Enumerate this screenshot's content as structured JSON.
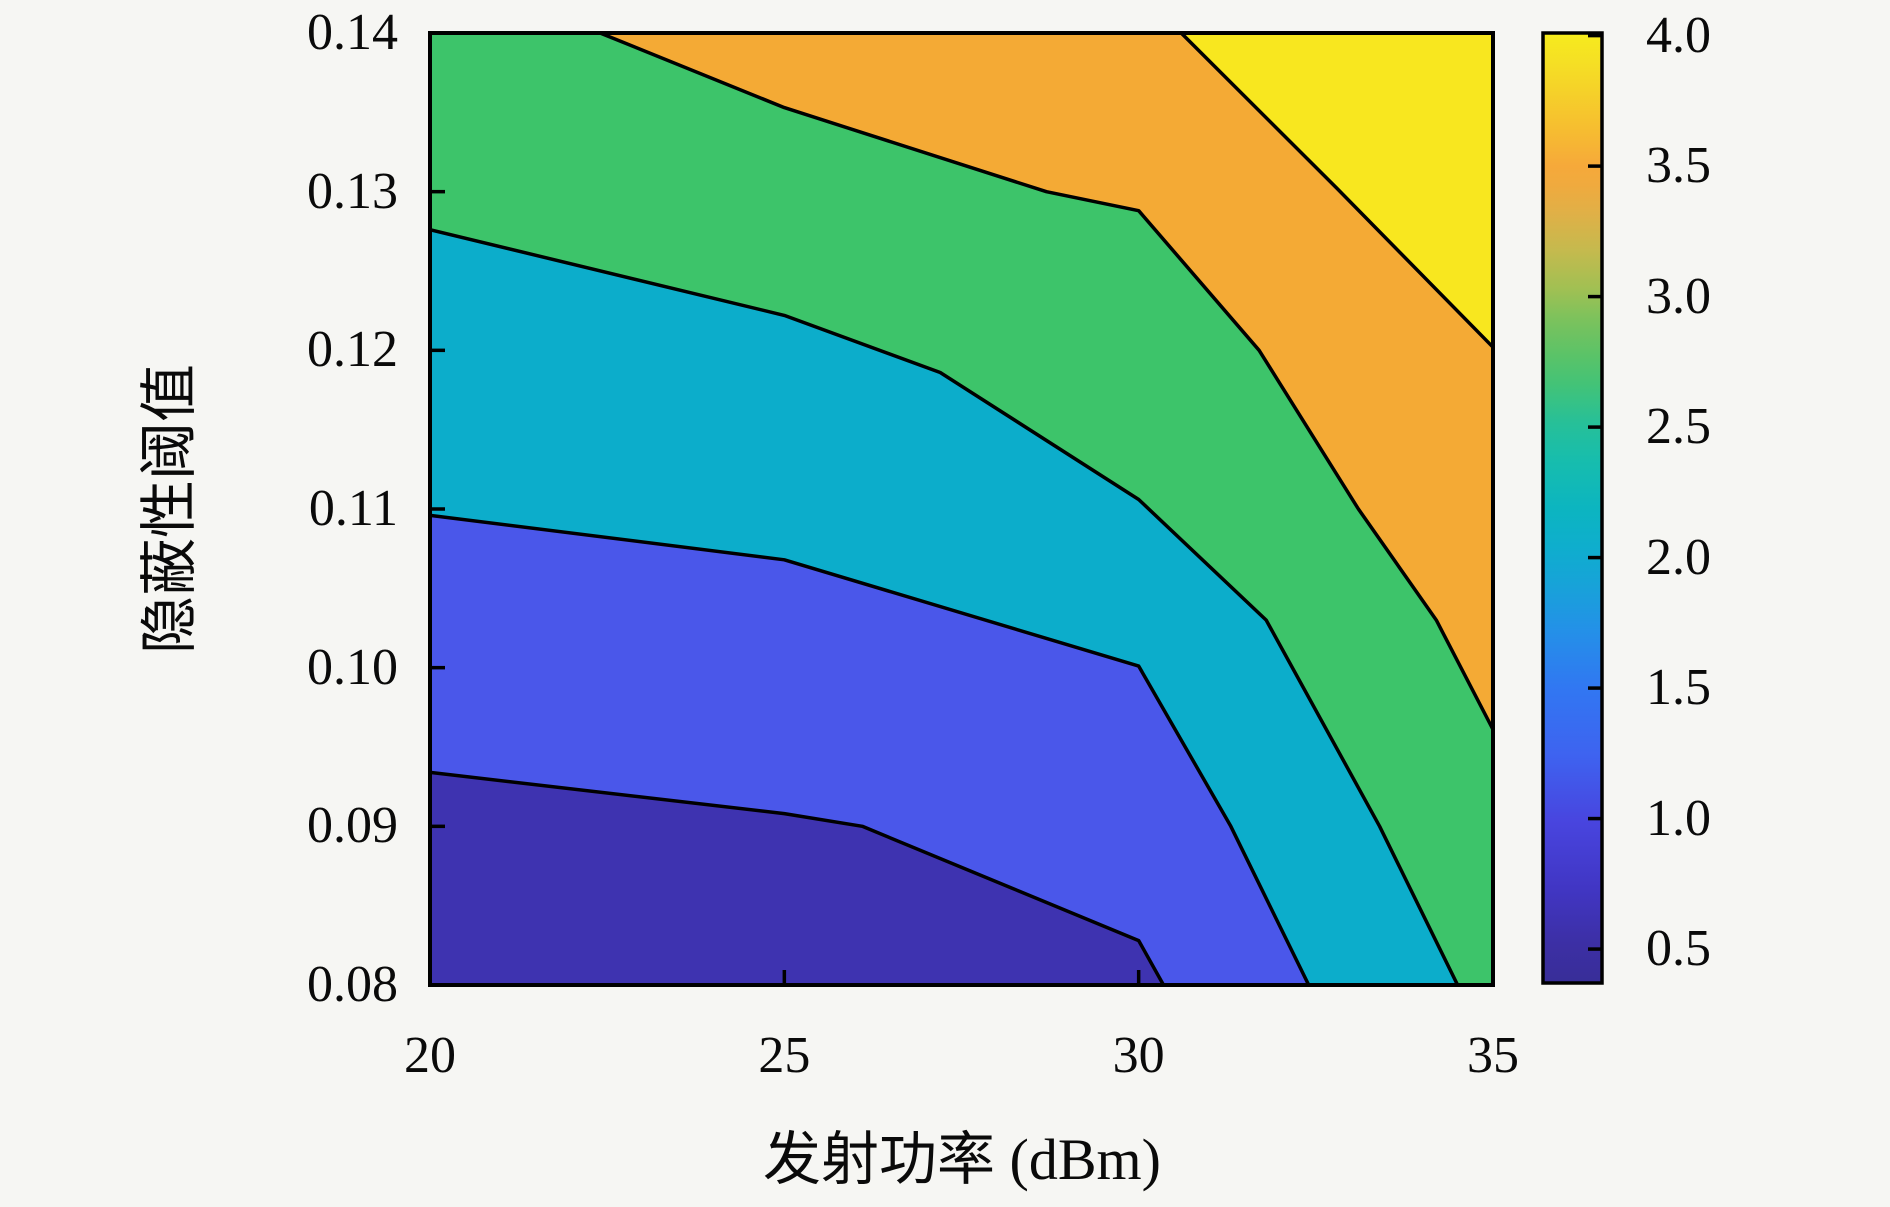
{
  "figure": {
    "background": "#f6f6f3",
    "kind": "MATLAB-style filled contour plot"
  },
  "axes": {
    "xlabel": "发射功率 (dBm)",
    "ylabel": "隐蔽性阈值",
    "x_range": [
      20,
      35
    ],
    "y_range": [
      0.08,
      0.14
    ],
    "border_color": "#000000",
    "x_ticks": [
      {
        "value": 20,
        "label": "20"
      },
      {
        "value": 25,
        "label": "25"
      },
      {
        "value": 30,
        "label": "30"
      },
      {
        "value": 35,
        "label": "35"
      }
    ],
    "y_ticks": [
      {
        "value": 0.14,
        "label": "0.14"
      },
      {
        "value": 0.13,
        "label": "0.13"
      },
      {
        "value": 0.12,
        "label": "0.12"
      },
      {
        "value": 0.11,
        "label": "0.11"
      },
      {
        "value": 0.1,
        "label": "0.10"
      },
      {
        "value": 0.09,
        "label": "0.09"
      },
      {
        "value": 0.08,
        "label": "0.08"
      }
    ]
  },
  "colorbar": {
    "value_range": [
      0.37,
      4.01
    ],
    "border_color": "#000000",
    "ticks": [
      {
        "value": 4.0,
        "label": "4.0"
      },
      {
        "value": 3.5,
        "label": "3.5"
      },
      {
        "value": 3.0,
        "label": "3.0"
      },
      {
        "value": 2.5,
        "label": "2.5"
      },
      {
        "value": 2.0,
        "label": "2.0"
      },
      {
        "value": 1.5,
        "label": "1.5"
      },
      {
        "value": 1.0,
        "label": "1.0"
      },
      {
        "value": 0.5,
        "label": "0.5"
      }
    ],
    "gradient_stops": [
      [
        0.0,
        "#382E98"
      ],
      [
        0.04,
        "#3C2FA4"
      ],
      [
        0.1,
        "#4136C4"
      ],
      [
        0.17,
        "#4845DF"
      ],
      [
        0.24,
        "#3E63F0"
      ],
      [
        0.31,
        "#3177F2"
      ],
      [
        0.37,
        "#2490E8"
      ],
      [
        0.42,
        "#17A3D8"
      ],
      [
        0.46,
        "#0EAECD"
      ],
      [
        0.5,
        "#0CB5C0"
      ],
      [
        0.55,
        "#17BDAD"
      ],
      [
        0.59,
        "#27C098"
      ],
      [
        0.63,
        "#43C377"
      ],
      [
        0.66,
        "#5AC368"
      ],
      [
        0.7,
        "#7DC25C"
      ],
      [
        0.73,
        "#A0C053"
      ],
      [
        0.77,
        "#C4BA4E"
      ],
      [
        0.81,
        "#E0B047"
      ],
      [
        0.84,
        "#F0AA3E"
      ],
      [
        0.86,
        "#F6A93A"
      ],
      [
        0.9,
        "#F6BE30"
      ],
      [
        0.94,
        "#F5D229"
      ],
      [
        0.97,
        "#F5E024"
      ],
      [
        0.995,
        "#F6E91E"
      ],
      [
        1.0,
        "#FAF215"
      ]
    ]
  },
  "chart_data": {
    "type": "filled_contour",
    "title": "",
    "xlabel": "发射功率 (dBm)",
    "ylabel": "隐蔽性阈值",
    "x_grid": [
      20,
      25,
      30,
      35
    ],
    "y_grid": [
      0.08,
      0.09,
      0.1,
      0.11,
      0.12,
      0.13,
      0.14
    ],
    "xlim": [
      20,
      35
    ],
    "ylim": [
      0.08,
      0.14
    ],
    "grid": false,
    "legend": "colorbar-right",
    "colorbar_tick_values": [
      0.5,
      1.0,
      1.5,
      2.0,
      2.5,
      3.0,
      3.5,
      4.0
    ],
    "contour_line_color": "#000000",
    "bands": [
      {
        "name": "lowest",
        "color": "#3E33B0",
        "region": "base",
        "value_range_estimated": [
          0.37,
          1.0
        ]
      },
      {
        "name": "low",
        "color": "#4A57EA",
        "above_line_index": 0,
        "value_range_estimated": [
          1.0,
          2.0
        ]
      },
      {
        "name": "mid-low",
        "color": "#0CADCB",
        "above_line_index": 1,
        "value_range_estimated": [
          2.0,
          2.5
        ]
      },
      {
        "name": "mid",
        "color": "#3DC46A",
        "above_line_index": 2,
        "value_range_estimated": [
          2.5,
          3.5
        ]
      },
      {
        "name": "high",
        "color": "#F4AA35",
        "above_line_index": 3,
        "value_range_estimated": [
          3.5,
          4.0
        ]
      },
      {
        "name": "highest",
        "color": "#F8E71F",
        "above_line_index": 4,
        "value_range_estimated": [
          4.0,
          4.01
        ]
      }
    ],
    "contour_lines": [
      {
        "level_estimated": 1.0,
        "points": [
          [
            20,
            0.0934
          ],
          [
            25,
            0.0908
          ],
          [
            26.1,
            0.09
          ],
          [
            30,
            0.0828
          ],
          [
            30.35,
            0.08
          ]
        ],
        "close": [
          [
            35,
            0.08
          ],
          [
            35,
            0.14
          ],
          [
            20,
            0.14
          ]
        ]
      },
      {
        "level_estimated": 2.0,
        "points": [
          [
            20,
            0.1096
          ],
          [
            25,
            0.1068
          ],
          [
            30,
            0.1001
          ],
          [
            31.3,
            0.09
          ],
          [
            32.4,
            0.08
          ]
        ],
        "close": [
          [
            35,
            0.08
          ],
          [
            35,
            0.14
          ],
          [
            20,
            0.14
          ]
        ]
      },
      {
        "level_estimated": 2.5,
        "points": [
          [
            20,
            0.1276
          ],
          [
            25,
            0.1222
          ],
          [
            27.2,
            0.1186
          ],
          [
            30,
            0.1106
          ],
          [
            31.8,
            0.103
          ],
          [
            33.4,
            0.09
          ],
          [
            34.5,
            0.08
          ]
        ],
        "close": [
          [
            35,
            0.08
          ],
          [
            35,
            0.14
          ],
          [
            20,
            0.14
          ]
        ]
      },
      {
        "level_estimated": 3.5,
        "points": [
          [
            22.4,
            0.14
          ],
          [
            25,
            0.1353
          ],
          [
            28.7,
            0.13
          ],
          [
            30,
            0.1288
          ],
          [
            31.7,
            0.12
          ],
          [
            33.1,
            0.11
          ],
          [
            34.2,
            0.103
          ],
          [
            35,
            0.0961
          ]
        ],
        "close": [
          [
            35,
            0.14
          ]
        ]
      },
      {
        "level_estimated": 4.0,
        "points": [
          [
            30.6,
            0.14
          ],
          [
            32.8,
            0.1302
          ],
          [
            35,
            0.1202
          ]
        ],
        "close": [
          [
            35,
            0.14
          ]
        ]
      }
    ]
  }
}
